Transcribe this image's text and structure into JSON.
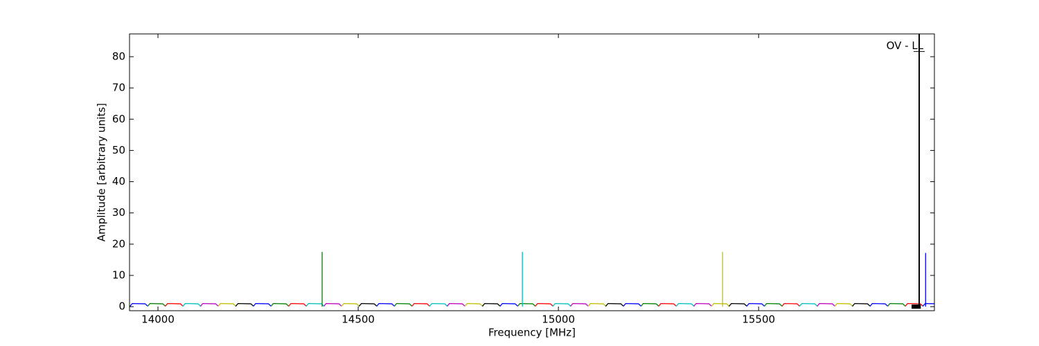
{
  "chart_data": {
    "type": "line",
    "xlabel": "Frequency [MHz]",
    "ylabel": "Amplitude [arbitrary units]",
    "xlim": [
      13929,
      15939
    ],
    "ylim": [
      -1.3,
      87.3
    ],
    "xticks": [
      14000,
      14500,
      15000,
      15500
    ],
    "yticks": [
      0,
      10,
      20,
      30,
      40,
      50,
      60,
      70,
      80
    ],
    "series": [
      {
        "color": "#0000ff",
        "x": [
          13930,
          13936,
          13968,
          13974
        ],
        "values": [
          0.1,
          1.0,
          0.9,
          0.2
        ]
      },
      {
        "color": "#008000",
        "x": [
          13974,
          13980,
          14012,
          14018
        ],
        "values": [
          0.1,
          1.0,
          0.9,
          0.2
        ]
      },
      {
        "color": "#ff0000",
        "x": [
          14018,
          14024,
          14056,
          14062
        ],
        "values": [
          0.1,
          1.0,
          0.9,
          0.2
        ]
      },
      {
        "color": "#00bfbf",
        "x": [
          14062,
          14068,
          14100,
          14106
        ],
        "values": [
          0.1,
          1.0,
          0.9,
          0.2
        ]
      },
      {
        "color": "#bf00bf",
        "x": [
          14106,
          14112,
          14144,
          14150
        ],
        "values": [
          0.1,
          1.0,
          0.9,
          0.2
        ]
      },
      {
        "color": "#bfbf00",
        "x": [
          14150,
          14156,
          14188,
          14194
        ],
        "values": [
          0.1,
          1.0,
          0.9,
          0.2
        ]
      },
      {
        "color": "#000000",
        "x": [
          14194,
          14200,
          14232,
          14238
        ],
        "values": [
          0.1,
          1.0,
          0.9,
          0.2
        ]
      },
      {
        "color": "#0000ff",
        "x": [
          14238,
          14244,
          14276,
          14282
        ],
        "values": [
          0.1,
          1.0,
          0.9,
          0.2
        ]
      },
      {
        "color": "#008000",
        "x": [
          14282,
          14288,
          14320,
          14326
        ],
        "values": [
          0.1,
          1.0,
          0.9,
          0.2
        ]
      },
      {
        "color": "#ff0000",
        "x": [
          14326,
          14332,
          14364,
          14370
        ],
        "values": [
          0.1,
          1.0,
          0.9,
          0.2
        ]
      },
      {
        "color": "#00bfbf",
        "x": [
          14370,
          14376,
          14408,
          14414
        ],
        "values": [
          0.1,
          1.0,
          0.9,
          0.2
        ]
      },
      {
        "color": "#bf00bf",
        "x": [
          14414,
          14420,
          14452,
          14458
        ],
        "values": [
          0.1,
          1.0,
          0.9,
          0.2
        ]
      },
      {
        "color": "#bfbf00",
        "x": [
          14458,
          14464,
          14496,
          14502
        ],
        "values": [
          0.1,
          1.0,
          0.9,
          0.2
        ]
      },
      {
        "color": "#000000",
        "x": [
          14502,
          14508,
          14540,
          14546
        ],
        "values": [
          0.1,
          1.0,
          0.9,
          0.2
        ]
      },
      {
        "color": "#0000ff",
        "x": [
          14546,
          14552,
          14584,
          14590
        ],
        "values": [
          0.1,
          1.0,
          0.9,
          0.2
        ]
      },
      {
        "color": "#008000",
        "x": [
          14590,
          14596,
          14628,
          14634
        ],
        "values": [
          0.1,
          1.0,
          0.9,
          0.2
        ]
      },
      {
        "color": "#ff0000",
        "x": [
          14634,
          14640,
          14672,
          14678
        ],
        "values": [
          0.1,
          1.0,
          0.9,
          0.2
        ]
      },
      {
        "color": "#00bfbf",
        "x": [
          14678,
          14684,
          14716,
          14722
        ],
        "values": [
          0.1,
          1.0,
          0.9,
          0.2
        ]
      },
      {
        "color": "#bf00bf",
        "x": [
          14722,
          14728,
          14760,
          14766
        ],
        "values": [
          0.1,
          1.0,
          0.9,
          0.2
        ]
      },
      {
        "color": "#bfbf00",
        "x": [
          14766,
          14772,
          14804,
          14810
        ],
        "values": [
          0.1,
          1.0,
          0.9,
          0.2
        ]
      },
      {
        "color": "#000000",
        "x": [
          14810,
          14816,
          14848,
          14854
        ],
        "values": [
          0.1,
          1.0,
          0.9,
          0.2
        ]
      },
      {
        "color": "#0000ff",
        "x": [
          14854,
          14860,
          14892,
          14898
        ],
        "values": [
          0.1,
          1.0,
          0.9,
          0.2
        ]
      },
      {
        "color": "#008000",
        "x": [
          14898,
          14904,
          14936,
          14942
        ],
        "values": [
          0.1,
          1.0,
          0.9,
          0.2
        ]
      },
      {
        "color": "#ff0000",
        "x": [
          14942,
          14948,
          14980,
          14986
        ],
        "values": [
          0.1,
          1.0,
          0.9,
          0.2
        ]
      },
      {
        "color": "#00bfbf",
        "x": [
          14986,
          14992,
          15024,
          15030
        ],
        "values": [
          0.1,
          1.0,
          0.9,
          0.2
        ]
      },
      {
        "color": "#bf00bf",
        "x": [
          15030,
          15036,
          15068,
          15074
        ],
        "values": [
          0.1,
          1.0,
          0.9,
          0.2
        ]
      },
      {
        "color": "#bfbf00",
        "x": [
          15074,
          15080,
          15112,
          15118
        ],
        "values": [
          0.1,
          1.0,
          0.9,
          0.2
        ]
      },
      {
        "color": "#000000",
        "x": [
          15118,
          15124,
          15156,
          15162
        ],
        "values": [
          0.1,
          1.0,
          0.9,
          0.2
        ]
      },
      {
        "color": "#0000ff",
        "x": [
          15162,
          15168,
          15200,
          15206
        ],
        "values": [
          0.1,
          1.0,
          0.9,
          0.2
        ]
      },
      {
        "color": "#008000",
        "x": [
          15206,
          15212,
          15244,
          15250
        ],
        "values": [
          0.1,
          1.0,
          0.9,
          0.2
        ]
      },
      {
        "color": "#ff0000",
        "x": [
          15250,
          15256,
          15288,
          15294
        ],
        "values": [
          0.1,
          1.0,
          0.9,
          0.2
        ]
      },
      {
        "color": "#00bfbf",
        "x": [
          15294,
          15300,
          15332,
          15338
        ],
        "values": [
          0.1,
          1.0,
          0.9,
          0.2
        ]
      },
      {
        "color": "#bf00bf",
        "x": [
          15338,
          15344,
          15376,
          15382
        ],
        "values": [
          0.1,
          1.0,
          0.9,
          0.2
        ]
      },
      {
        "color": "#bfbf00",
        "x": [
          15382,
          15388,
          15420,
          15426
        ],
        "values": [
          0.1,
          1.0,
          0.9,
          0.2
        ]
      },
      {
        "color": "#000000",
        "x": [
          15426,
          15432,
          15464,
          15470
        ],
        "values": [
          0.1,
          1.0,
          0.9,
          0.2
        ]
      },
      {
        "color": "#0000ff",
        "x": [
          15470,
          15476,
          15508,
          15514
        ],
        "values": [
          0.1,
          1.0,
          0.9,
          0.2
        ]
      },
      {
        "color": "#008000",
        "x": [
          15514,
          15520,
          15552,
          15558
        ],
        "values": [
          0.1,
          1.0,
          0.9,
          0.2
        ]
      },
      {
        "color": "#ff0000",
        "x": [
          15558,
          15564,
          15596,
          15602
        ],
        "values": [
          0.1,
          1.0,
          0.9,
          0.2
        ]
      },
      {
        "color": "#00bfbf",
        "x": [
          15602,
          15608,
          15640,
          15646
        ],
        "values": [
          0.1,
          1.0,
          0.9,
          0.2
        ]
      },
      {
        "color": "#bf00bf",
        "x": [
          15646,
          15652,
          15684,
          15690
        ],
        "values": [
          0.1,
          1.0,
          0.9,
          0.2
        ]
      },
      {
        "color": "#bfbf00",
        "x": [
          15690,
          15696,
          15728,
          15734
        ],
        "values": [
          0.1,
          1.0,
          0.9,
          0.2
        ]
      },
      {
        "color": "#000000",
        "x": [
          15734,
          15740,
          15772,
          15778
        ],
        "values": [
          0.1,
          1.0,
          0.9,
          0.2
        ]
      },
      {
        "color": "#0000ff",
        "x": [
          15778,
          15784,
          15816,
          15822
        ],
        "values": [
          0.1,
          1.0,
          0.9,
          0.2
        ]
      },
      {
        "color": "#008000",
        "x": [
          15822,
          15828,
          15860,
          15866
        ],
        "values": [
          0.1,
          1.0,
          0.9,
          0.2
        ]
      },
      {
        "color": "#ff0000",
        "x": [
          15866,
          15872,
          15904,
          15910
        ],
        "values": [
          0.1,
          1.0,
          0.9,
          0.2
        ]
      },
      {
        "color": "#0000ff",
        "x": [
          15910,
          15916,
          15948,
          15954
        ],
        "values": [
          0.1,
          1.0,
          0.9,
          0.2
        ]
      },
      {
        "color": "#008000",
        "x": [
          14410,
          14410
        ],
        "values": [
          0,
          17.5
        ]
      },
      {
        "color": "#00bfbf",
        "x": [
          14910,
          14910
        ],
        "values": [
          0,
          17.5
        ]
      },
      {
        "color": "#bfbf00",
        "x": [
          15410,
          15410
        ],
        "values": [
          0,
          17.5
        ]
      },
      {
        "color": "#0000ff",
        "x": [
          15917,
          15917
        ],
        "values": [
          0,
          17.2
        ]
      },
      {
        "color": "#000000",
        "x": [
          15882,
          15905
        ],
        "values": [
          0,
          0
        ],
        "line_width": 6
      }
    ],
    "annotations": [
      {
        "text": "OV - LL",
        "x": 15901,
        "y": 83
      }
    ]
  }
}
